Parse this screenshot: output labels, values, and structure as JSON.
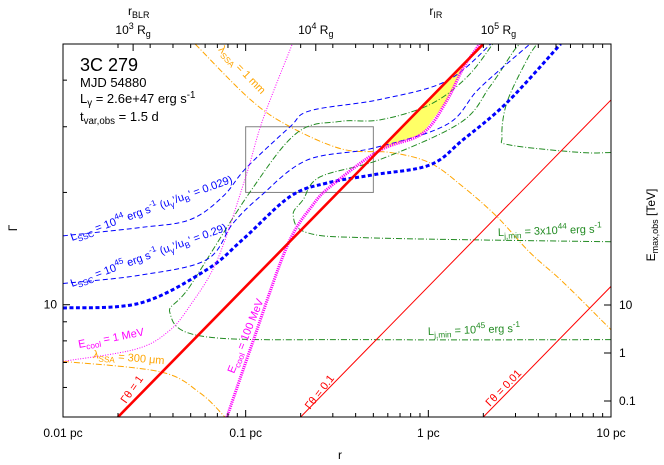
{
  "chart_data": {
    "type": "line",
    "x_scale": "log",
    "y_scale": "log",
    "xlim": [
      0.01,
      10
    ],
    "ylim": [
      5,
      50
    ],
    "right_axis_scale": "log",
    "grid": false,
    "xlabel": "r",
    "ylabel": "Γ",
    "y2label": [
      [
        "E",
        ""
      ],
      [
        "max,obs",
        "sub"
      ],
      [
        " [TeV]",
        ""
      ]
    ],
    "x_ticks": [
      {
        "v": 0.01,
        "label": "0.01 pc"
      },
      {
        "v": 0.1,
        "label": "0.1 pc"
      },
      {
        "v": 1,
        "label": "1 pc"
      },
      {
        "v": 10,
        "label": "10 pc"
      }
    ],
    "y_ticks": [
      {
        "v": 10,
        "label": "10"
      }
    ],
    "y_minor_ticks": [
      6,
      7,
      8,
      9,
      20,
      30,
      40
    ],
    "y2_ticks": [
      {
        "v": 10,
        "label": "10"
      },
      {
        "v": 1,
        "label": "1"
      },
      {
        "v": 0.1,
        "label": "0.1"
      }
    ],
    "top_ticks": [
      {
        "r": 0.0242,
        "label": [
          [
            "10",
            ""
          ],
          [
            "3",
            "sup"
          ],
          [
            " R",
            ""
          ],
          [
            "g",
            "sub"
          ]
        ]
      },
      {
        "r": 0.242,
        "label": [
          [
            "10",
            ""
          ],
          [
            "4",
            "sup"
          ],
          [
            " R",
            ""
          ],
          [
            "g",
            "sub"
          ]
        ]
      },
      {
        "r": 2.42,
        "label": [
          [
            "10",
            ""
          ],
          [
            "5",
            "sup"
          ],
          [
            " R",
            ""
          ],
          [
            "g",
            "sub"
          ]
        ]
      }
    ],
    "top_markers": [
      {
        "r": 0.026,
        "label": [
          [
            "r",
            ""
          ],
          [
            "BLR",
            "sub"
          ]
        ]
      },
      {
        "r": 1.1,
        "label": [
          [
            "r",
            ""
          ],
          [
            "IR",
            "sub"
          ]
        ]
      }
    ],
    "info": [
      [
        [
          "3C 279",
          ""
        ]
      ],
      [
        [
          "MJD 54880",
          ""
        ]
      ],
      [
        [
          "L",
          ""
        ],
        [
          "γ",
          "sub"
        ],
        [
          " = 2.6e+47 erg s",
          ""
        ],
        [
          "-1",
          "sup"
        ]
      ],
      [
        [
          "t",
          ""
        ],
        [
          "var,obs",
          "sub"
        ],
        [
          " = 1.5 d",
          ""
        ]
      ]
    ],
    "colors": {
      "ssc": "#0000ff",
      "cool": "#ff00ff",
      "jet": "#228b22",
      "ssa": "#ffa500",
      "collimation": "#ff0000",
      "allowed": "#ffff66",
      "box": "#808080"
    },
    "box": {
      "r": [
        0.1,
        0.5
      ],
      "gamma": [
        20,
        30
      ]
    },
    "allowed_region": {
      "between": [
        "collimation_gt1",
        "ecool_100MeV"
      ],
      "r_range": [
        0.54,
        1.84
      ]
    },
    "series": [
      {
        "id": "collimation_gt1",
        "style": "red-thick",
        "points": [
          [
            0.02,
            5
          ],
          [
            2,
            50
          ]
        ],
        "label": [
          [
            "Γθ = 1",
            ""
          ]
        ]
      },
      {
        "id": "collimation_gt01",
        "style": "red-thin",
        "points": [
          [
            0.2,
            5
          ],
          [
            10,
            35.4
          ]
        ],
        "label": [
          [
            "Γθ = 0.1",
            ""
          ]
        ]
      },
      {
        "id": "collimation_gt001",
        "style": "red-thin",
        "points": [
          [
            2,
            5
          ],
          [
            10,
            11.2
          ]
        ],
        "label": [
          [
            "Γθ = 0.01",
            ""
          ]
        ]
      },
      {
        "id": "lssc_1e44",
        "style": "blue-dash",
        "points": [
          [
            0.01,
            15.3
          ],
          [
            0.0264,
            16.1
          ],
          [
            0.0495,
            16.9
          ],
          [
            0.075,
            19.5
          ],
          [
            0.101,
            23.3
          ],
          [
            0.175,
            30
          ],
          [
            0.225,
            33.1
          ],
          [
            0.543,
            35.5
          ],
          [
            1.26,
            39.8
          ],
          [
            2.2,
            50
          ]
        ],
        "label": [
          [
            "L",
            ""
          ],
          [
            "SSC",
            "sub"
          ],
          [
            " = 10",
            ""
          ],
          [
            "44",
            "sup"
          ],
          [
            " erg s",
            ""
          ],
          [
            "-1",
            "sup"
          ],
          [
            " (u",
            ""
          ],
          [
            "γ",
            "sub"
          ],
          [
            "'/u",
            ""
          ],
          [
            "B",
            "sub"
          ],
          [
            "' = 0.029)",
            ""
          ]
        ]
      },
      {
        "id": "lssc_1e45",
        "style": "blue-dash",
        "points": [
          [
            0.01,
            11.4
          ],
          [
            0.0264,
            12.0
          ],
          [
            0.061,
            13.2
          ],
          [
            0.085,
            16.5
          ],
          [
            0.12,
            19.5
          ],
          [
            0.216,
            24.4
          ],
          [
            0.5,
            26.3
          ],
          [
            1.26,
            30.4
          ],
          [
            1.9,
            38
          ],
          [
            3.6,
            50
          ]
        ],
        "label": [
          [
            "L",
            ""
          ],
          [
            "SSC",
            "sub"
          ],
          [
            " = 10",
            ""
          ],
          [
            "45",
            "sup"
          ],
          [
            " erg s",
            ""
          ],
          [
            "-1",
            "sup"
          ],
          [
            " (u",
            ""
          ],
          [
            "γ",
            "sub"
          ],
          [
            "'/u",
            ""
          ],
          [
            "B",
            "sub"
          ],
          [
            "' = 0.29)",
            ""
          ]
        ]
      },
      {
        "id": "ssc_thick",
        "style": "blue-thick",
        "points": [
          [
            0.01,
            9.8
          ],
          [
            0.0264,
            10.1
          ],
          [
            0.061,
            12.4
          ],
          [
            0.097,
            15.0
          ],
          [
            0.175,
            19.5
          ],
          [
            0.279,
            21.2
          ],
          [
            0.5,
            22.3
          ],
          [
            1.02,
            23.7
          ],
          [
            1.55,
            27.7
          ],
          [
            2.69,
            34.8
          ],
          [
            5.3,
            50
          ]
        ],
        "label": []
      },
      {
        "id": "ecool_1MeV",
        "style": "magenta-thin",
        "points": [
          [
            0.01,
            7.05
          ],
          [
            0.025,
            7.6
          ],
          [
            0.038,
            8.5
          ],
          [
            0.05,
            10.0
          ],
          [
            0.07,
            13.2
          ],
          [
            0.1,
            22
          ],
          [
            0.124,
            31.3
          ],
          [
            0.18,
            50
          ]
        ],
        "label": [
          [
            "E",
            ""
          ],
          [
            "cool",
            "sub"
          ],
          [
            " = 1 MeV",
            ""
          ]
        ]
      },
      {
        "id": "ecool_100MeV",
        "style": "magenta-thick",
        "points": [
          [
            0.079,
            5
          ],
          [
            0.106,
            7.6
          ],
          [
            0.168,
            14.3
          ],
          [
            0.233,
            18.5
          ],
          [
            0.3,
            21
          ],
          [
            0.54,
            25.9
          ],
          [
            0.93,
            28.8
          ],
          [
            1.26,
            35.2
          ],
          [
            1.55,
            43.1
          ],
          [
            1.84,
            48.7
          ],
          [
            1.9,
            50
          ]
        ],
        "label": [
          [
            "E",
            ""
          ],
          [
            "cool",
            "sub"
          ],
          [
            " = 100 MeV",
            ""
          ]
        ]
      },
      {
        "id": "ljmin_3e44",
        "style": "green",
        "points": [
          [
            10,
            14.75
          ],
          [
            0.5,
            15.1
          ],
          [
            0.217,
            15.6
          ],
          [
            0.182,
            17.4
          ],
          [
            0.206,
            19.1
          ],
          [
            0.255,
            22.0
          ],
          [
            0.543,
            24.5
          ],
          [
            1.49,
            30.7
          ],
          [
            2.17,
            38.4
          ],
          [
            2.9,
            47.5
          ],
          [
            3.17,
            50
          ]
        ],
        "label": [
          [
            "L",
            ""
          ],
          [
            "j,min",
            "sub"
          ],
          [
            " = 3x10",
            ""
          ],
          [
            "44",
            "sup"
          ],
          [
            " erg s",
            ""
          ],
          [
            "-1",
            "sup"
          ]
        ]
      },
      {
        "id": "ljmin_1e45",
        "style": "green",
        "points": [
          [
            10,
            8.06
          ],
          [
            0.5,
            8.06
          ],
          [
            0.061,
            8.2
          ],
          [
            0.0385,
            9.5
          ],
          [
            0.0495,
            11.2
          ],
          [
            0.106,
            20.1
          ],
          [
            0.191,
            28.9
          ],
          [
            0.328,
            31.0
          ],
          [
            0.543,
            31.3
          ],
          [
            1.02,
            34.4
          ],
          [
            1.63,
            40.8
          ],
          [
            2.32,
            51
          ]
        ],
        "label": [
          [
            "L",
            ""
          ],
          [
            "j,min",
            "sub"
          ],
          [
            " = 10",
            ""
          ],
          [
            "45",
            "sup"
          ],
          [
            " erg s",
            ""
          ],
          [
            "-1",
            "sup"
          ]
        ]
      },
      {
        "id": "ljmin_right",
        "style": "green",
        "points": [
          [
            10,
            25.6
          ],
          [
            6.76,
            25.6
          ],
          [
            2.8,
            26.8
          ],
          [
            2.53,
            28.2
          ],
          [
            2.69,
            34.8
          ],
          [
            3.47,
            45.4
          ],
          [
            3.93,
            50
          ]
        ],
        "label": []
      },
      {
        "id": "lssa_1mm",
        "style": "orange",
        "points": [
          [
            0.0529,
            50
          ],
          [
            0.106,
            35.5
          ],
          [
            0.175,
            30.0
          ],
          [
            0.341,
            26.1
          ],
          [
            0.617,
            25.6
          ],
          [
            1.02,
            24.0
          ],
          [
            1.55,
            20.7
          ],
          [
            2.38,
            17.2
          ],
          [
            3.6,
            13.8
          ],
          [
            5.46,
            11.5
          ],
          [
            10,
            8.57
          ]
        ],
        "label": [
          [
            "λ",
            ""
          ],
          [
            "SSA",
            "sub"
          ],
          [
            " = 1 mm",
            ""
          ]
        ]
      },
      {
        "id": "lssa_300um",
        "style": "orange",
        "points": [
          [
            0.01,
            7.05
          ],
          [
            0.034,
            6.61
          ],
          [
            0.056,
            5.81
          ],
          [
            0.077,
            5.0
          ]
        ],
        "label": [
          [
            "λ",
            ""
          ],
          [
            "SSA",
            "sub"
          ],
          [
            " = 300 μm",
            ""
          ]
        ]
      }
    ]
  }
}
